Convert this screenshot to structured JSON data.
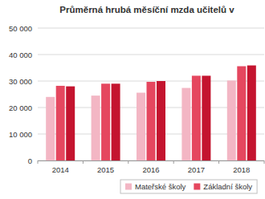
{
  "chart_data": {
    "type": "bar",
    "title": "Průměrná hrubá měsíční mzda učitelů v",
    "categories": [
      "2014",
      "2015",
      "2016",
      "2017",
      "2018"
    ],
    "series": [
      {
        "name": "Mateřské školy",
        "color": "#f3b6c4",
        "values": [
          24000,
          24500,
          25600,
          27400,
          30200
        ]
      },
      {
        "name": "Základní školy",
        "color": "#e5475f",
        "values": [
          28200,
          29000,
          29700,
          32000,
          35600
        ]
      },
      {
        "color": "#c4142f",
        "values": [
          28000,
          29000,
          30000,
          32000,
          35900
        ]
      }
    ],
    "ylim": [
      0,
      50000
    ],
    "yticks": [
      0,
      {
        "value": 10000,
        "label": "10 000"
      },
      {
        "value": 20000,
        "label": "20 000"
      },
      {
        "value": 30000,
        "label": "30 000"
      },
      {
        "value": 40000,
        "label": "40 000"
      },
      {
        "value": 50000,
        "label": "50 000"
      }
    ],
    "grid": true,
    "legend": "bottom"
  }
}
